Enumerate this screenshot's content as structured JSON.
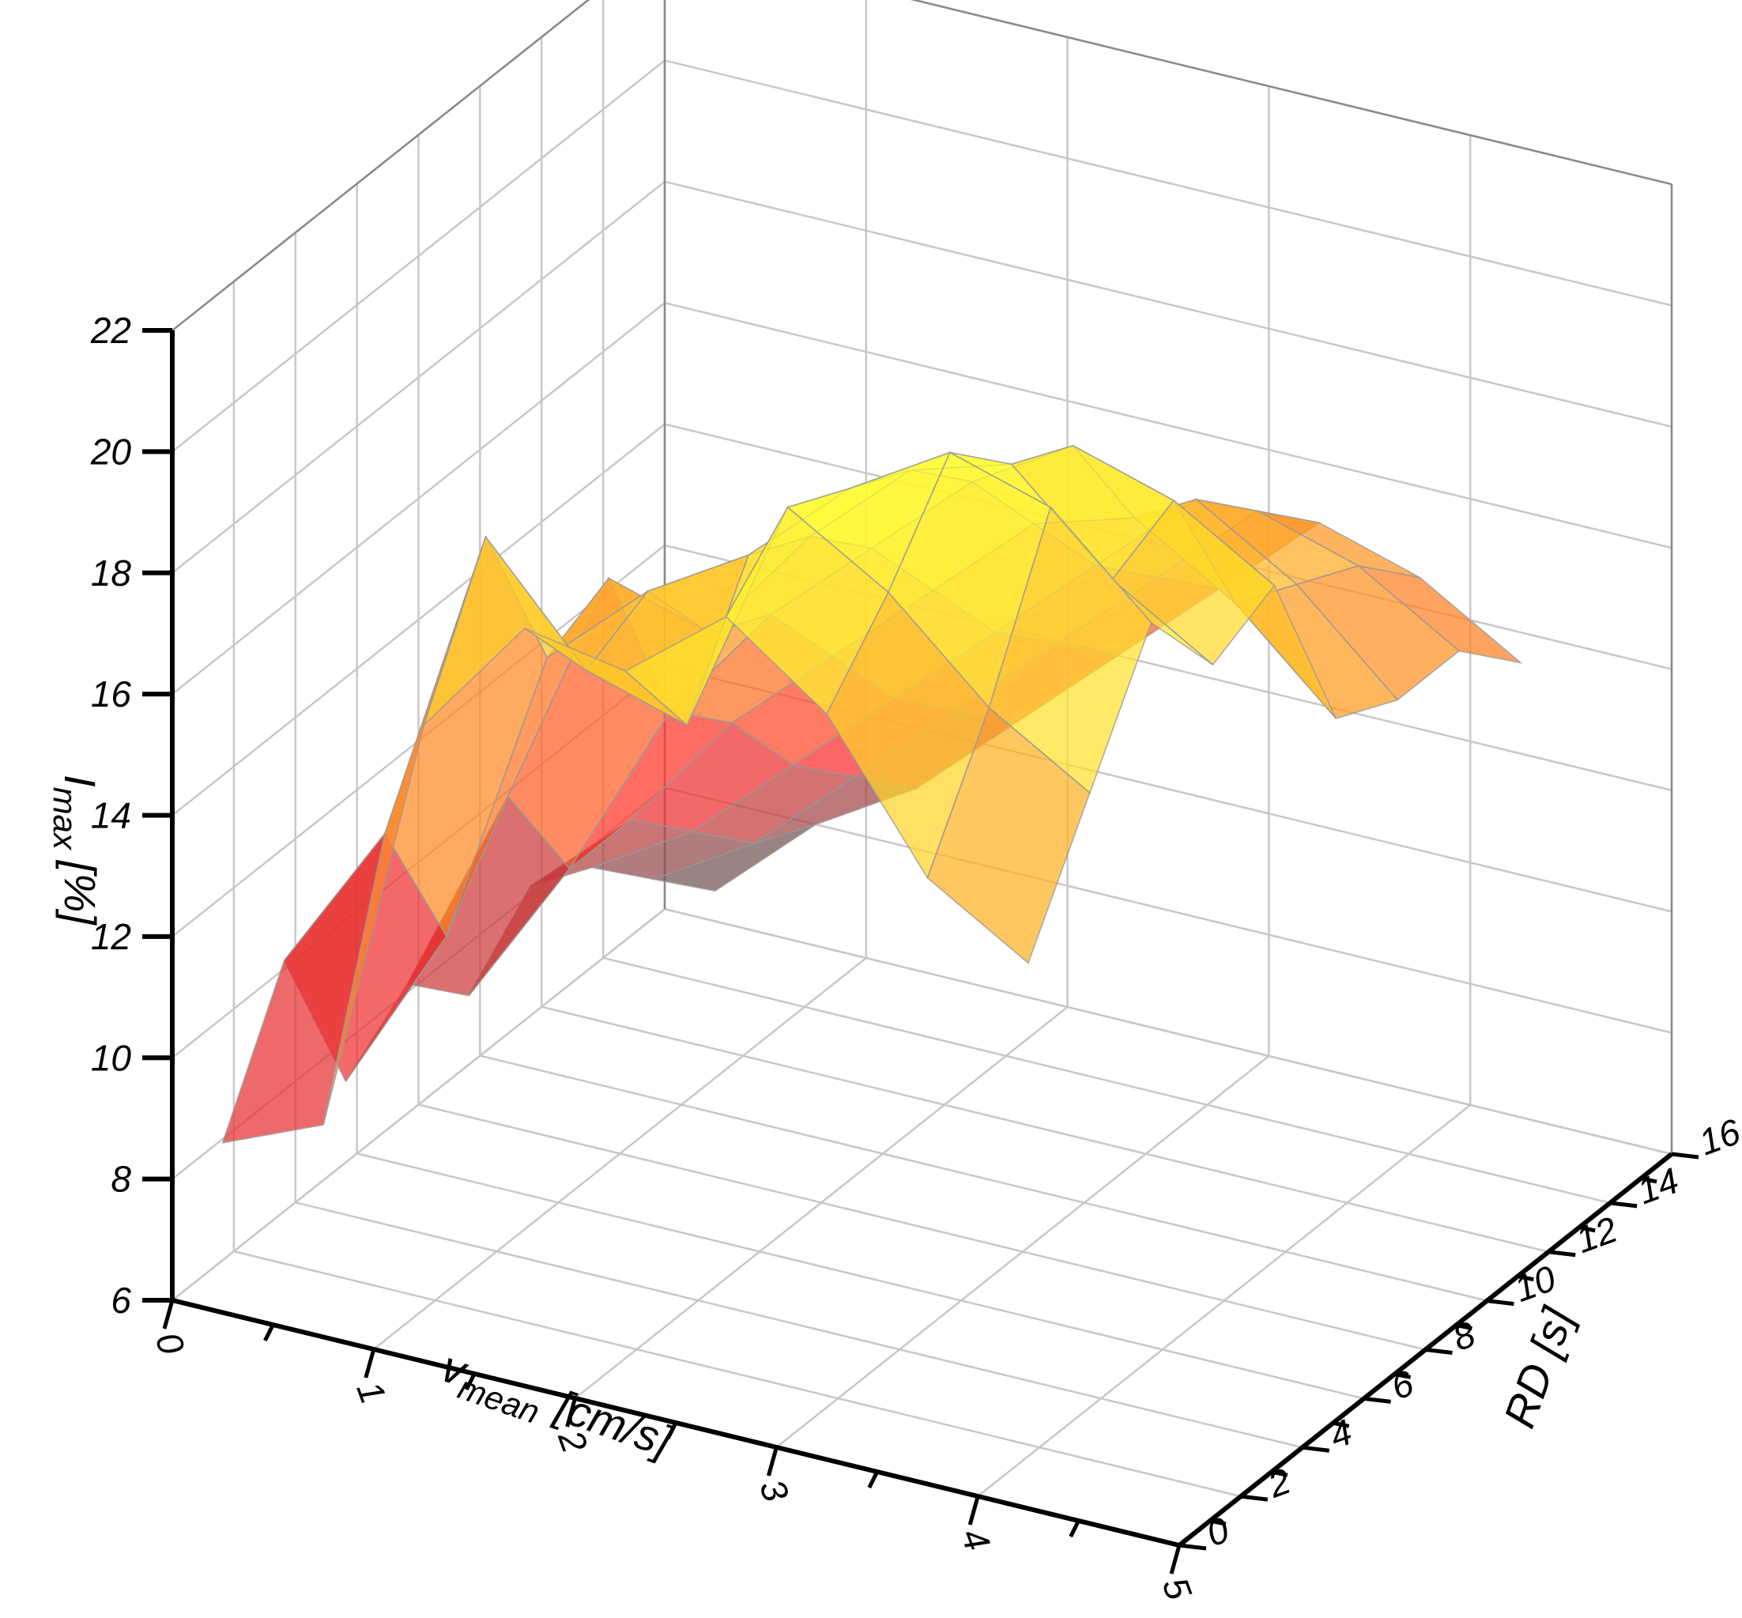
{
  "chart_data": {
    "type": "surface3d",
    "title": "",
    "x_axis": {
      "label_main": "v",
      "label_sub": "mean",
      "label_unit": "[cm/s]",
      "range": [
        0,
        5
      ],
      "ticks": [
        "0",
        "1",
        "2",
        "3",
        "4",
        "5"
      ]
    },
    "y_axis": {
      "label": "RD [s]",
      "range": [
        0,
        16
      ],
      "ticks": [
        "0",
        "2",
        "4",
        "6",
        "8",
        "10",
        "12",
        "14",
        "16"
      ]
    },
    "z_axis": {
      "label_main": "I",
      "label_sub": "max",
      "label_unit": "[%]",
      "range": [
        6,
        22
      ],
      "ticks": [
        "6",
        "8",
        "10",
        "12",
        "14",
        "16",
        "18",
        "20",
        "22"
      ]
    },
    "grid": true,
    "colormap": [
      "#5a5a5a",
      "#ff2a2a",
      "#ffa020",
      "#ffff30"
    ],
    "x": [
      0.25,
      0.75,
      1.25,
      1.75,
      2.25,
      2.75,
      3.25,
      3.75,
      4.25
    ],
    "y": [
      0,
      2,
      4,
      6,
      8,
      10,
      12,
      14,
      16
    ],
    "z": [
      [
        8.8,
        9.5,
        16.5,
        18.5,
        18.2,
        19.5,
        18.3,
        16.0,
        15.0
      ],
      [
        11.0,
        13.5,
        18.8,
        17.0,
        16.5,
        20.5,
        19.5,
        18.0,
        17.0
      ],
      [
        8.2,
        11.0,
        16.0,
        17.5,
        18.5,
        20.0,
        21.0,
        20.5,
        19.0
      ],
      [
        9.0,
        12.5,
        16.5,
        16.0,
        18.0,
        19.5,
        20.0,
        18.5,
        17.5
      ],
      [
        8.0,
        10.5,
        13.5,
        15.5,
        17.0,
        18.5,
        19.5,
        19.0,
        18.0
      ],
      [
        9.0,
        10.5,
        12.5,
        14.0,
        15.5,
        17.0,
        17.5,
        16.5,
        15.0
      ],
      [
        8.5,
        9.5,
        11.0,
        12.5,
        14.0,
        15.5,
        17.0,
        16.0,
        14.5
      ],
      [
        7.5,
        8.5,
        10.0,
        11.5,
        13.0,
        14.5,
        16.0,
        15.5,
        14.5
      ],
      [
        6.5,
        8.0,
        9.0,
        10.5,
        12.0,
        13.5,
        15.0,
        14.5,
        13.5
      ]
    ]
  }
}
